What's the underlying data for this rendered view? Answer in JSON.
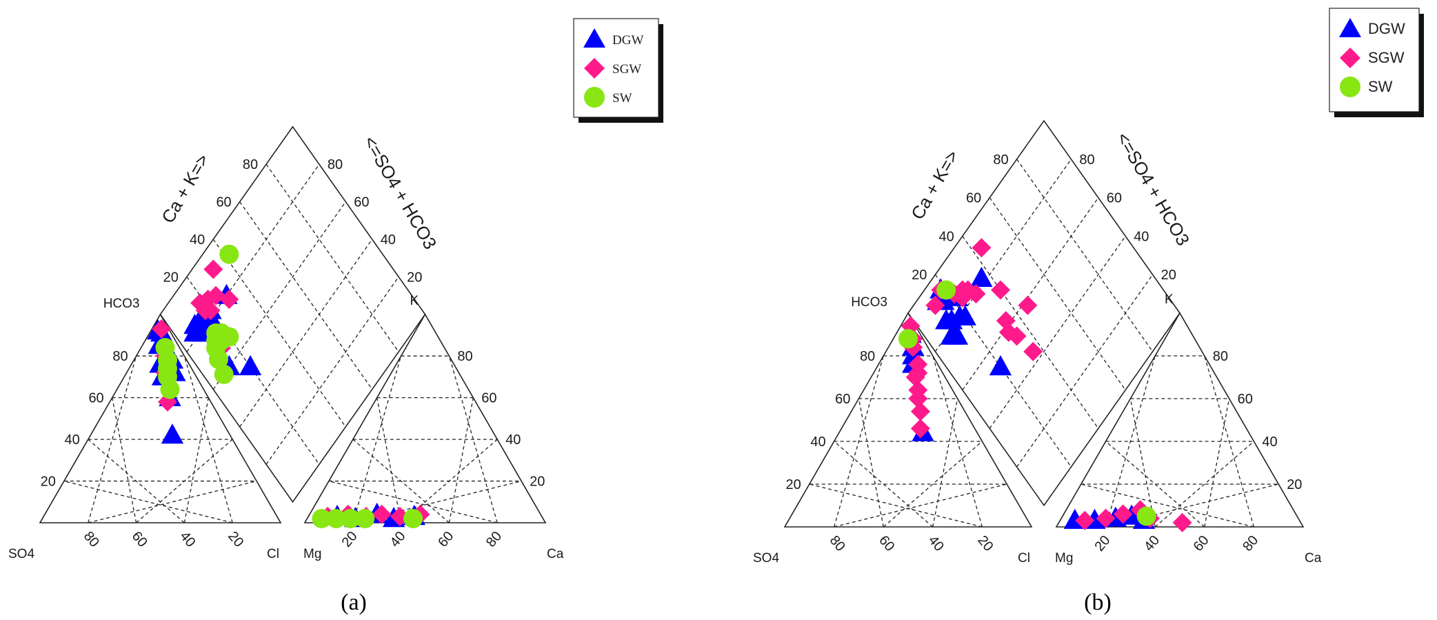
{
  "chart_data": [
    {
      "type": "scatter",
      "subtype": "piper",
      "caption": "(a)",
      "vertex_labels": {
        "cation_left": "Mg",
        "cation_right": "Ca",
        "cation_top": "K",
        "anion_left": "SO4",
        "anion_right": "Cl",
        "anion_top": "HCO3"
      },
      "axis_titles": {
        "diamond_left": "Ca + K=>",
        "diamond_right": "<=SO4 + HCO3"
      },
      "tick_values": [
        20,
        40,
        60,
        80
      ],
      "legend": {
        "placement": "top-right",
        "entries": [
          "DGW",
          "SGW",
          "SW"
        ]
      },
      "series": [
        {
          "name": "DGW",
          "marker": "triangle",
          "color": "#0000ff",
          "cation": [
            [
              12,
              3
            ],
            [
              20,
              2
            ],
            [
              28,
              4
            ],
            [
              36,
              2
            ],
            [
              44,
              3
            ]
          ],
          "anion": [
            [
              4,
              5,
              91
            ],
            [
              5,
              3,
              92
            ],
            [
              8,
              7,
              85
            ],
            [
              10,
              12,
              78
            ],
            [
              6,
              16,
              78
            ],
            [
              12,
              12,
              76
            ],
            [
              8,
              20,
              72
            ],
            [
              14,
              16,
              70
            ],
            [
              16,
              24,
              60
            ],
            [
              24,
              34,
              42
            ]
          ],
          "diamond": [
            [
              14,
              76
            ],
            [
              12,
              78
            ],
            [
              10,
              80
            ],
            [
              12,
              82
            ],
            [
              10,
              84
            ],
            [
              14,
              82
            ],
            [
              16,
              78
            ],
            [
              18,
              80
            ],
            [
              8,
              82
            ],
            [
              20,
              82
            ],
            [
              18,
              84
            ],
            [
              30,
              80
            ],
            [
              12,
              60
            ],
            [
              20,
              52
            ]
          ]
        },
        {
          "name": "SGW",
          "marker": "diamond",
          "color": "#ff1a8c",
          "cation": [
            [
              8,
              3
            ],
            [
              16,
              4
            ],
            [
              24,
              3
            ],
            [
              30,
              4
            ],
            [
              38,
              3
            ],
            [
              46,
              4
            ]
          ],
          "anion": [
            [
              3,
              4,
              93
            ],
            [
              8,
              12,
              80
            ],
            [
              12,
              16,
              72
            ],
            [
              14,
              22,
              64
            ],
            [
              18,
              24,
              58
            ]
          ],
          "diamond": [
            [
              32,
              92
            ],
            [
              20,
              82
            ],
            [
              18,
              84
            ],
            [
              22,
              86
            ],
            [
              18,
              88
            ],
            [
              26,
              84
            ],
            [
              30,
              78
            ],
            [
              14,
              68
            ]
          ]
        },
        {
          "name": "SW",
          "marker": "circle",
          "color": "#88e612",
          "cation": [
            [
              6,
              2
            ],
            [
              12,
              2
            ],
            [
              18,
              2
            ],
            [
              24,
              2
            ],
            [
              44,
              2
            ]
          ],
          "anion": [
            [
              6,
              10,
              84
            ],
            [
              8,
              14,
              78
            ],
            [
              10,
              16,
              74
            ],
            [
              12,
              18,
              70
            ],
            [
              14,
              22,
              64
            ]
          ],
          "diamond": [
            [
              42,
              90
            ],
            [
              14,
              72
            ],
            [
              12,
              70
            ],
            [
              16,
              74
            ],
            [
              16,
              70
            ],
            [
              18,
              72
            ],
            [
              10,
              66
            ],
            [
              20,
              68
            ],
            [
              8,
              60
            ]
          ]
        }
      ]
    },
    {
      "type": "scatter",
      "subtype": "piper",
      "caption": "(b)",
      "vertex_labels": {
        "cation_left": "Mg",
        "cation_right": "Ca",
        "cation_top": "K",
        "anion_left": "SO4",
        "anion_right": "Cl",
        "anion_top": "HCO3"
      },
      "axis_titles": {
        "diamond_left": "Ca + K=>",
        "diamond_right": "<=SO4 + HCO3"
      },
      "tick_values": [
        20,
        40,
        60,
        80
      ],
      "legend": {
        "placement": "top-right",
        "entries": [
          "DGW",
          "SGW",
          "SW"
        ]
      },
      "series": [
        {
          "name": "DGW",
          "marker": "triangle",
          "color": "#0000ff",
          "cation": [
            [
              6,
              3
            ],
            [
              14,
              3
            ],
            [
              22,
              4
            ],
            [
              28,
              5
            ],
            [
              34,
              3
            ]
          ],
          "anion": [
            [
              4,
              6,
              90
            ],
            [
              6,
              10,
              84
            ],
            [
              8,
              12,
              80
            ],
            [
              10,
              14,
              76
            ],
            [
              22,
              34,
              44
            ]
          ],
          "diamond": [
            [
              18,
              94
            ],
            [
              14,
              92
            ],
            [
              16,
              90
            ],
            [
              20,
              90
            ],
            [
              22,
              86
            ],
            [
              10,
              78
            ],
            [
              12,
              76
            ],
            [
              14,
              82
            ],
            [
              18,
              80
            ],
            [
              20,
              78
            ],
            [
              12,
              84
            ],
            [
              36,
              82
            ],
            [
              20,
              52
            ]
          ]
        },
        {
          "name": "SGW",
          "marker": "diamond",
          "color": "#ff1a8c",
          "cation": [
            [
              10,
              3
            ],
            [
              18,
              4
            ],
            [
              24,
              6
            ],
            [
              30,
              8
            ],
            [
              36,
              4
            ],
            [
              50,
              2
            ]
          ],
          "anion": [
            [
              2,
              4,
              94
            ],
            [
              4,
              8,
              88
            ],
            [
              6,
              10,
              84
            ],
            [
              8,
              16,
              76
            ],
            [
              10,
              18,
              72
            ],
            [
              12,
              18,
              70
            ],
            [
              14,
              22,
              64
            ],
            [
              16,
              24,
              60
            ],
            [
              18,
              28,
              54
            ],
            [
              22,
              32,
              46
            ]
          ],
          "diamond": [
            [
              44,
              90
            ],
            [
              18,
              94
            ],
            [
              12,
              92
            ],
            [
              22,
              88
            ],
            [
              26,
              86
            ],
            [
              24,
              84
            ],
            [
              28,
              84
            ],
            [
              30,
              80
            ],
            [
              40,
              72
            ],
            [
              34,
              62
            ],
            [
              32,
              58
            ],
            [
              34,
              54
            ],
            [
              46,
              58
            ],
            [
              36,
              44
            ]
          ]
        },
        {
          "name": "SW",
          "marker": "circle",
          "color": "#88e612",
          "cation": [
            [
              34,
              5
            ]
          ],
          "anion": [
            [
              6,
              6,
              88
            ]
          ],
          "diamond": [
            [
              20,
              92
            ]
          ]
        }
      ]
    }
  ]
}
